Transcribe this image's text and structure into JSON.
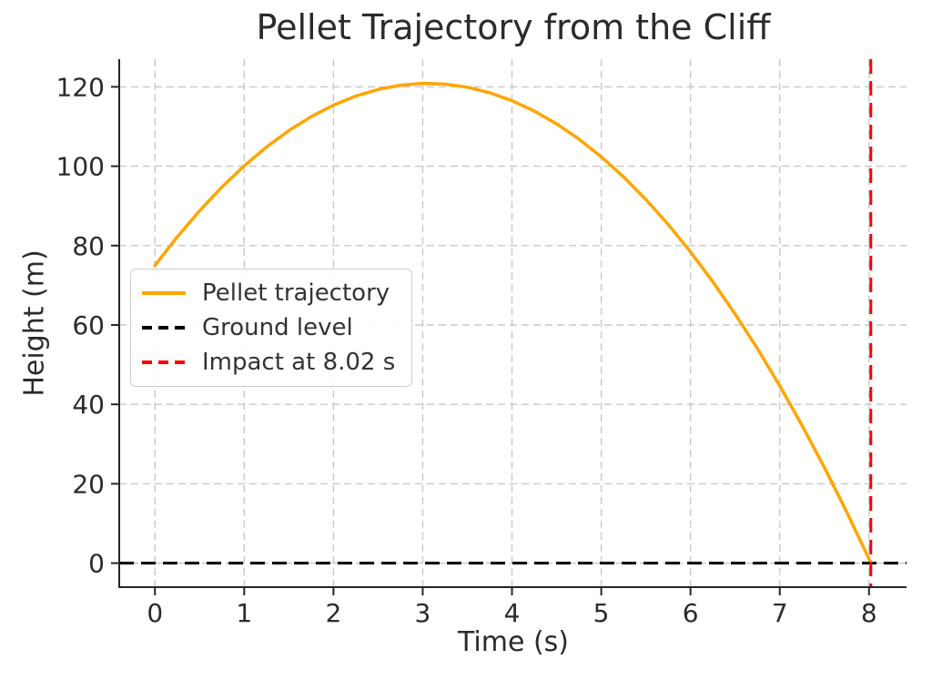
{
  "chart_data": {
    "type": "line",
    "title": "Pellet Trajectory from the Cliff",
    "xlabel": "Time (s)",
    "ylabel": "Height (m)",
    "xlim": [
      -0.4,
      8.42
    ],
    "ylim": [
      -6.05,
      126.97
    ],
    "xticks": [
      0,
      1,
      2,
      3,
      4,
      5,
      6,
      7,
      8
    ],
    "yticks": [
      0,
      20,
      40,
      60,
      80,
      100,
      120
    ],
    "grid": true,
    "grid_linestyle": "dashed",
    "legend_position": "center-left",
    "series": [
      {
        "name": "Pellet trajectory",
        "kind": "line",
        "color": "#FFA500",
        "linestyle": "solid",
        "x": [
          0,
          0.25,
          0.5,
          0.75,
          1,
          1.25,
          1.5,
          1.75,
          2,
          2.25,
          2.5,
          2.75,
          3,
          3.25,
          3.5,
          3.75,
          4,
          4.25,
          4.5,
          4.75,
          5,
          5.25,
          5.5,
          5.75,
          6,
          6.25,
          6.5,
          6.75,
          7,
          7.25,
          7.5,
          7.75,
          8,
          8.02
        ],
        "y": [
          75,
          82.19,
          88.77,
          94.74,
          100.1,
          104.84,
          108.96,
          112.48,
          115.38,
          117.67,
          119.34,
          120.41,
          120.86,
          120.69,
          119.91,
          118.52,
          116.52,
          113.9,
          110.67,
          106.83,
          102.38,
          97.31,
          91.62,
          85.33,
          78.42,
          70.9,
          62.76,
          54.02,
          44.66,
          34.68,
          24.09,
          12.89,
          1.08,
          0.0
        ]
      },
      {
        "name": "Ground level",
        "kind": "hline",
        "color": "#000000",
        "linestyle": "dashed",
        "y": 0
      },
      {
        "name": "Impact at 8.02 s",
        "kind": "vline",
        "color": "#FF0000",
        "linestyle": "dashed",
        "x": 8.02
      }
    ],
    "legend": [
      {
        "label": "Pellet trajectory",
        "color": "#FFA500",
        "linestyle": "solid"
      },
      {
        "label": "Ground level",
        "color": "#000000",
        "linestyle": "dashed"
      },
      {
        "label": "Impact at 8.02 s",
        "color": "#FF0000",
        "linestyle": "dashed"
      }
    ]
  },
  "colors": {
    "background": "#ffffff",
    "text": "#2b2b2b",
    "spine": "#262626",
    "grid": "#c8c8c8",
    "trajectory": "#FFA500",
    "ground": "#000000",
    "impact": "#FF0000"
  }
}
